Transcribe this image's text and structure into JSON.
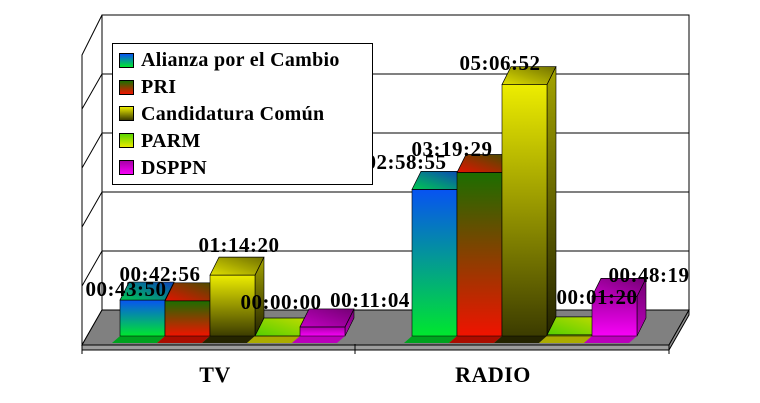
{
  "page": {
    "background": "#FFFFFF",
    "title": ""
  },
  "chart_data": {
    "type": "bar",
    "style": "3d-clustered-vertical-gradient",
    "title": "",
    "xlabel": "",
    "ylabel": "",
    "categories": [
      "TV",
      "RADIO"
    ],
    "series": [
      {
        "name": "Alianza por el Cambio",
        "labels": [
          "00:43:50",
          "02:58:55"
        ],
        "seconds": [
          2630,
          10735
        ],
        "colors": {
          "front": [
            "#0753F2",
            "#00E62E"
          ],
          "side": [
            "#04349E",
            "#00A21F"
          ],
          "cap": [
            "#00C94F",
            "#0B41BD"
          ]
        }
      },
      {
        "name": "PRI",
        "labels": [
          "00:42:56",
          "03:19:29"
        ],
        "seconds": [
          2576,
          11969
        ],
        "colors": {
          "front": [
            "#1C6E00",
            "#F01300"
          ],
          "side": [
            "#124A00",
            "#AA0D00"
          ],
          "cap": [
            "#E41200",
            "#3F5200"
          ]
        }
      },
      {
        "name": "Candidatura Común",
        "labels": [
          "01:14:20",
          "05:06:52"
        ],
        "seconds": [
          4460,
          18412
        ],
        "colors": {
          "front": [
            "#EDED00",
            "#3C3C00"
          ],
          "side": [
            "#A5A500",
            "#242400"
          ],
          "cap": [
            "#E0E000",
            "#6F6F00"
          ]
        }
      },
      {
        "name": "PARM",
        "labels": [
          "00:00:00",
          "00:01:20"
        ],
        "seconds": [
          0,
          80
        ],
        "colors": {
          "front": [
            "#5AD600",
            "#E9E900"
          ],
          "side": [
            "#3E9A00",
            "#ABAB00"
          ],
          "cap": [
            "#52CF00",
            "#C2DB00"
          ]
        }
      },
      {
        "name": "DSPPN",
        "labels": [
          "00:11:04",
          "00:48:19"
        ],
        "seconds": [
          664,
          2899
        ],
        "colors": {
          "front": [
            "#A800A8",
            "#F702F7"
          ],
          "side": [
            "#730073",
            "#BB00BB"
          ],
          "cap": [
            "#C400C4",
            "#740074"
          ]
        }
      }
    ],
    "axis": {
      "min_seconds": 0,
      "max_seconds": 21600,
      "major_unit_seconds": 4320,
      "gridlines": true,
      "value_tick_labels_visible": false
    },
    "legend": {
      "position": "top-left",
      "border": true
    },
    "scene_colors": {
      "wall": "#FFFFFF",
      "floor_top": "#808080",
      "floor_front": "#9E9E9E",
      "floor_side": "#909090",
      "line": "#000000",
      "label_text": "#000000"
    }
  }
}
